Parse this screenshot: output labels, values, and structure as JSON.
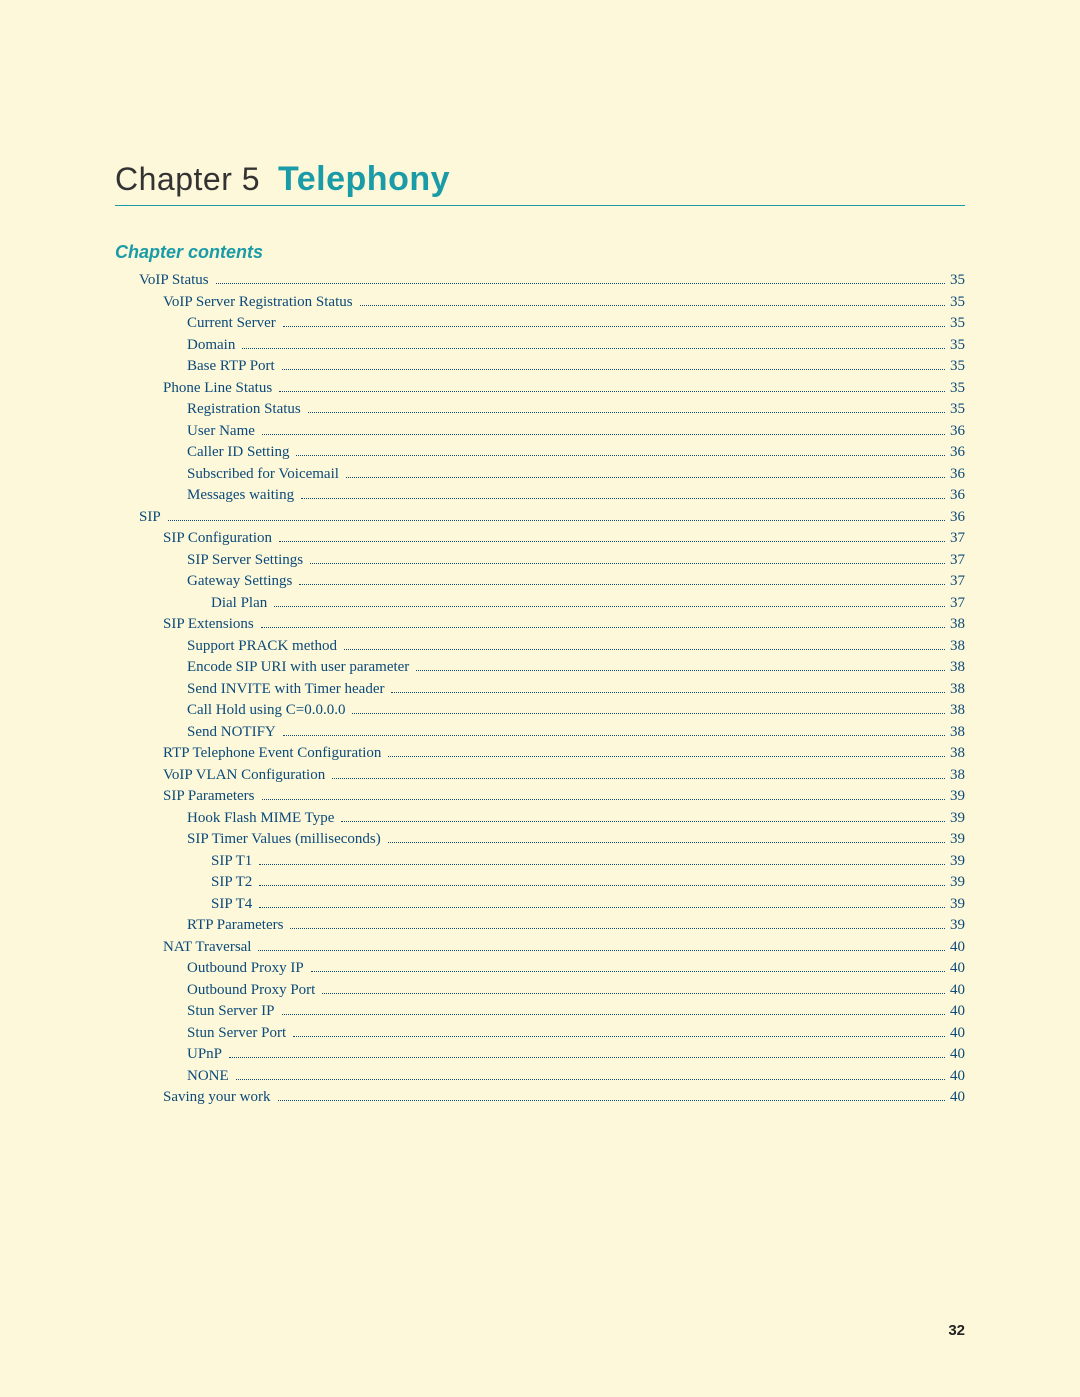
{
  "chapter": {
    "prefix": "Chapter 5",
    "title": "Telephony"
  },
  "contents_heading": "Chapter contents",
  "page_number": "32",
  "colors": {
    "background": "#fdf8d9",
    "accent": "#1a9ba8",
    "link": "#0b4a7a",
    "text": "#333333"
  },
  "typography": {
    "chapter_prefix_fontsize": 32,
    "chapter_title_fontsize": 34,
    "contents_heading_fontsize": 18,
    "toc_fontsize": 15,
    "page_number_fontsize": 15
  },
  "toc": [
    {
      "label": "VoIP Status",
      "page": "35",
      "indent": 0
    },
    {
      "label": "VoIP Server Registration Status",
      "page": "35",
      "indent": 1
    },
    {
      "label": "Current Server",
      "page": "35",
      "indent": 2
    },
    {
      "label": "Domain",
      "page": "35",
      "indent": 2
    },
    {
      "label": "Base RTP Port",
      "page": "35",
      "indent": 2
    },
    {
      "label": "Phone Line Status",
      "page": "35",
      "indent": 1
    },
    {
      "label": "Registration Status",
      "page": "35",
      "indent": 2
    },
    {
      "label": "User Name",
      "page": "36",
      "indent": 2
    },
    {
      "label": "Caller ID Setting",
      "page": "36",
      "indent": 2
    },
    {
      "label": "Subscribed for Voicemail",
      "page": "36",
      "indent": 2
    },
    {
      "label": "Messages waiting",
      "page": "36",
      "indent": 2
    },
    {
      "label": "SIP",
      "page": "36",
      "indent": 0
    },
    {
      "label": "SIP Configuration",
      "page": "37",
      "indent": 1
    },
    {
      "label": "SIP Server Settings",
      "page": "37",
      "indent": 2
    },
    {
      "label": "Gateway Settings",
      "page": "37",
      "indent": 2
    },
    {
      "label": "Dial Plan",
      "page": " 37",
      "indent": 3
    },
    {
      "label": "SIP Extensions",
      "page": "38",
      "indent": 1
    },
    {
      "label": "Support PRACK method",
      "page": "38",
      "indent": 2
    },
    {
      "label": "Encode SIP URI with user parameter",
      "page": "38",
      "indent": 2
    },
    {
      "label": "Send INVITE with Timer header",
      "page": "38",
      "indent": 2
    },
    {
      "label": "Call Hold using C=0.0.0.0",
      "page": "38",
      "indent": 2
    },
    {
      "label": "Send NOTIFY",
      "page": "38",
      "indent": 2
    },
    {
      "label": "RTP Telephone Event Configuration",
      "page": "38",
      "indent": 1
    },
    {
      "label": "VoIP VLAN Configuration",
      "page": "38",
      "indent": 1
    },
    {
      "label": "SIP Parameters",
      "page": "39",
      "indent": 1
    },
    {
      "label": "Hook Flash MIME Type",
      "page": "39",
      "indent": 2
    },
    {
      "label": "SIP Timer Values (milliseconds)",
      "page": "39",
      "indent": 2
    },
    {
      "label": "SIP T1",
      "page": " 39",
      "indent": 3
    },
    {
      "label": "SIP T2",
      "page": " 39",
      "indent": 3
    },
    {
      "label": "SIP T4",
      "page": " 39",
      "indent": 3
    },
    {
      "label": "RTP Parameters",
      "page": "39",
      "indent": 2
    },
    {
      "label": "NAT Traversal",
      "page": "40",
      "indent": 1
    },
    {
      "label": "Outbound Proxy IP",
      "page": "40",
      "indent": 2
    },
    {
      "label": "Outbound Proxy Port",
      "page": "40",
      "indent": 2
    },
    {
      "label": "Stun Server IP",
      "page": "40",
      "indent": 2
    },
    {
      "label": "Stun Server Port",
      "page": "40",
      "indent": 2
    },
    {
      "label": "UPnP",
      "page": "40",
      "indent": 2
    },
    {
      "label": "NONE",
      "page": "40",
      "indent": 2
    },
    {
      "label": "Saving your work",
      "page": "40",
      "indent": 1
    }
  ]
}
